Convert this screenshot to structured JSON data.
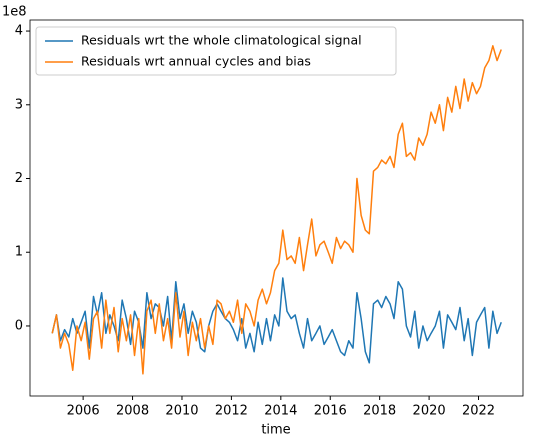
{
  "chart_data": {
    "type": "line",
    "x_label": "time",
    "y_offset_label": "1e8",
    "xlim": [
      2003.85,
      2023.8
    ],
    "xticks": [
      2006,
      2008,
      2010,
      2012,
      2014,
      2016,
      2018,
      2020,
      2022
    ],
    "ylim": [
      -0.95,
      4.15
    ],
    "yticks": [
      0,
      1,
      2,
      3,
      4
    ],
    "grid": false,
    "legend": "upper left",
    "x": [
      2004.75,
      2004.92,
      2005.08,
      2005.25,
      2005.42,
      2005.58,
      2005.75,
      2005.92,
      2006.08,
      2006.25,
      2006.42,
      2006.58,
      2006.75,
      2006.92,
      2007.08,
      2007.25,
      2007.42,
      2007.58,
      2007.75,
      2007.92,
      2008.08,
      2008.25,
      2008.42,
      2008.58,
      2008.75,
      2008.92,
      2009.08,
      2009.25,
      2009.42,
      2009.58,
      2009.75,
      2009.92,
      2010.08,
      2010.25,
      2010.42,
      2010.58,
      2010.75,
      2010.92,
      2011.08,
      2011.25,
      2011.42,
      2011.58,
      2011.75,
      2011.92,
      2012.08,
      2012.25,
      2012.42,
      2012.58,
      2012.75,
      2012.92,
      2013.08,
      2013.25,
      2013.42,
      2013.58,
      2013.75,
      2013.92,
      2014.08,
      2014.25,
      2014.42,
      2014.58,
      2014.75,
      2014.92,
      2015.08,
      2015.25,
      2015.42,
      2015.58,
      2015.75,
      2015.92,
      2016.08,
      2016.25,
      2016.42,
      2016.58,
      2016.75,
      2016.92,
      2017.08,
      2017.25,
      2017.42,
      2017.58,
      2017.75,
      2017.92,
      2018.08,
      2018.25,
      2018.42,
      2018.58,
      2018.75,
      2018.92,
      2019.08,
      2019.25,
      2019.42,
      2019.58,
      2019.75,
      2019.92,
      2020.08,
      2020.25,
      2020.42,
      2020.58,
      2020.75,
      2020.92,
      2021.08,
      2021.25,
      2021.42,
      2021.58,
      2021.75,
      2021.92,
      2022.08,
      2022.25,
      2022.42,
      2022.58,
      2022.75,
      2022.92
    ],
    "series": [
      {
        "name": "Residuals wrt the whole climatological signal",
        "color": "#1f77b4",
        "values": [
          -0.1,
          0.15,
          -0.2,
          -0.05,
          -0.15,
          0.1,
          -0.1,
          0.05,
          0.2,
          -0.3,
          0.4,
          0.15,
          0.45,
          -0.1,
          0.15,
          0.0,
          -0.2,
          0.35,
          0.1,
          -0.25,
          0.2,
          0.05,
          -0.3,
          0.45,
          0.1,
          0.3,
          0.25,
          0.0,
          0.4,
          -0.2,
          0.6,
          0.1,
          0.3,
          -0.1,
          0.2,
          0.05,
          -0.3,
          -0.35,
          0.0,
          0.2,
          0.3,
          0.2,
          0.1,
          0.05,
          -0.05,
          -0.2,
          0.1,
          -0.3,
          -0.1,
          -0.35,
          0.05,
          -0.25,
          0.1,
          -0.2,
          0.15,
          0.0,
          0.65,
          0.2,
          0.1,
          0.15,
          -0.1,
          -0.3,
          0.1,
          -0.2,
          -0.1,
          0.0,
          -0.25,
          -0.15,
          -0.05,
          -0.2,
          -0.35,
          -0.4,
          -0.2,
          -0.3,
          0.45,
          0.1,
          -0.35,
          -0.5,
          0.3,
          0.35,
          0.25,
          0.4,
          0.3,
          0.1,
          0.6,
          0.5,
          0.0,
          -0.15,
          0.2,
          -0.3,
          0.0,
          -0.2,
          -0.1,
          0.0,
          0.2,
          -0.3,
          0.15,
          0.05,
          -0.05,
          0.25,
          -0.2,
          0.1,
          -0.4,
          0.05,
          0.15,
          0.25,
          -0.3,
          0.2,
          -0.1,
          0.05
        ]
      },
      {
        "name": "Residuals wrt annual cycles and bias",
        "color": "#ff7f0e",
        "values": [
          -0.1,
          0.15,
          -0.3,
          -0.1,
          -0.25,
          -0.6,
          0.0,
          -0.2,
          0.05,
          -0.45,
          0.1,
          0.2,
          -0.3,
          0.35,
          -0.1,
          0.25,
          -0.35,
          0.1,
          -0.2,
          0.15,
          -0.4,
          0.1,
          -0.65,
          0.2,
          0.35,
          -0.1,
          0.3,
          -0.2,
          0.1,
          -0.3,
          0.45,
          -0.15,
          0.2,
          -0.4,
          0.05,
          -0.2,
          0.1,
          -0.3,
          0.0,
          -0.25,
          0.35,
          0.3,
          0.1,
          0.2,
          0.05,
          0.35,
          -0.1,
          0.3,
          0.2,
          0.0,
          0.35,
          0.5,
          0.3,
          0.45,
          0.75,
          0.85,
          1.3,
          0.9,
          0.95,
          0.85,
          1.2,
          0.75,
          1.1,
          1.45,
          0.95,
          1.1,
          1.15,
          1.0,
          0.85,
          1.2,
          1.05,
          1.15,
          1.1,
          1.0,
          2.0,
          1.5,
          1.3,
          1.25,
          2.1,
          2.15,
          2.25,
          2.2,
          2.3,
          2.15,
          2.6,
          2.75,
          2.3,
          2.35,
          2.25,
          2.55,
          2.45,
          2.6,
          2.9,
          2.75,
          3.0,
          2.65,
          3.1,
          2.9,
          3.25,
          2.95,
          3.35,
          3.05,
          3.3,
          3.15,
          3.25,
          3.5,
          3.6,
          3.8,
          3.6,
          3.75
        ]
      }
    ]
  }
}
